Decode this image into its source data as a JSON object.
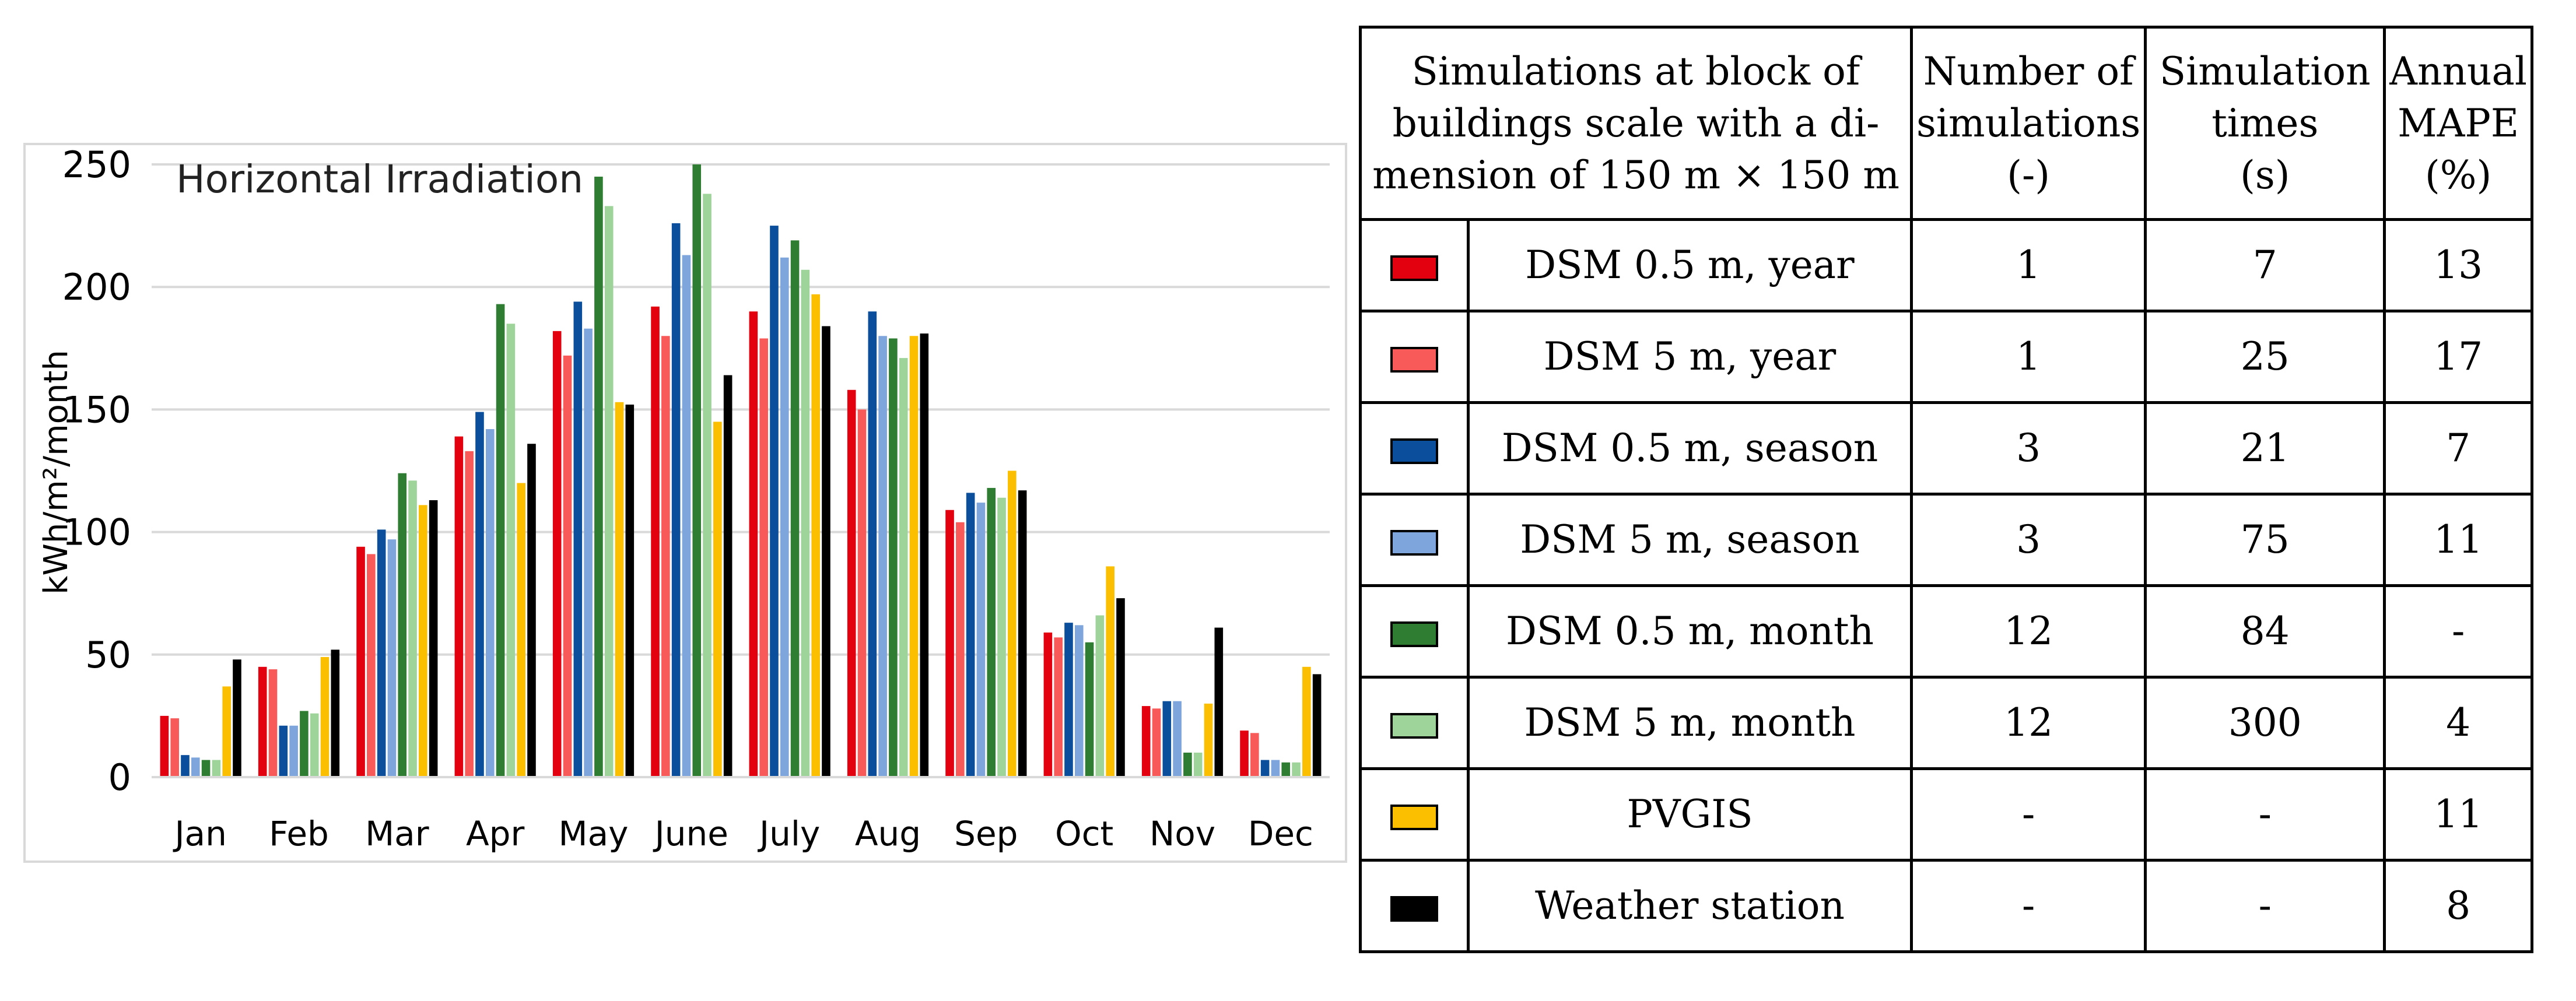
{
  "chart_data": {
    "type": "bar",
    "title": "Horizontal Irradiation",
    "xlabel": "",
    "ylabel": "kWh/m²/month",
    "ylim": [
      0,
      250
    ],
    "yticks": [
      0,
      50,
      100,
      150,
      200,
      250
    ],
    "grid": true,
    "categories": [
      "Jan",
      "Feb",
      "Mar",
      "Apr",
      "May",
      "June",
      "July",
      "Aug",
      "Sep",
      "Oct",
      "Nov",
      "Dec"
    ],
    "series": [
      {
        "name": "DSM 0.5 m, year",
        "color": "#e3000f",
        "values": [
          25,
          45,
          94,
          139,
          182,
          192,
          190,
          158,
          109,
          59,
          29,
          19
        ]
      },
      {
        "name": "DSM 5 m, year",
        "color": "#f85a5a",
        "values": [
          24,
          44,
          91,
          133,
          172,
          180,
          179,
          150,
          104,
          57,
          28,
          18
        ]
      },
      {
        "name": "DSM 0.5 m, season",
        "color": "#0b4f9c",
        "values": [
          9,
          21,
          101,
          149,
          194,
          226,
          225,
          190,
          116,
          63,
          31,
          7
        ]
      },
      {
        "name": "DSM 5 m, season",
        "color": "#7ea6dd",
        "values": [
          8,
          21,
          97,
          142,
          183,
          213,
          212,
          180,
          112,
          62,
          31,
          7
        ]
      },
      {
        "name": "DSM 0.5 m, month",
        "color": "#2e7d32",
        "values": [
          7,
          27,
          124,
          193,
          245,
          250,
          219,
          179,
          118,
          55,
          10,
          6
        ]
      },
      {
        "name": "DSM 5 m, month",
        "color": "#9ed49a",
        "values": [
          7,
          26,
          121,
          185,
          233,
          238,
          207,
          171,
          114,
          66,
          10,
          6
        ]
      },
      {
        "name": "PVGIS",
        "color": "#fbbf00",
        "values": [
          37,
          49,
          111,
          120,
          153,
          145,
          197,
          180,
          125,
          86,
          30,
          45
        ]
      },
      {
        "name": "Weather station",
        "color": "#000000",
        "values": [
          48,
          52,
          113,
          136,
          152,
          164,
          184,
          181,
          117,
          73,
          61,
          42
        ]
      }
    ]
  },
  "table": {
    "headers": {
      "name_lines": [
        "Simulations at block of",
        "buildings scale with a di-",
        "mension of 150 m × 150 m"
      ],
      "num_lines": [
        "Number of",
        "simulations",
        "(-)"
      ],
      "time_lines": [
        "Simulation",
        "times",
        "(s)"
      ],
      "mape_lines": [
        "Annual",
        "MAPE",
        "(%)"
      ]
    },
    "rows": [
      {
        "name": "DSM 0.5 m, year",
        "num": "1",
        "time": "7",
        "mape": "13",
        "color": "#e3000f"
      },
      {
        "name": "DSM 5 m, year",
        "num": "1",
        "time": "25",
        "mape": "17",
        "color": "#f85a5a"
      },
      {
        "name": "DSM 0.5 m, season",
        "num": "3",
        "time": "21",
        "mape": "7",
        "color": "#0b4f9c"
      },
      {
        "name": "DSM 5 m, season",
        "num": "3",
        "time": "75",
        "mape": "11",
        "color": "#7ea6dd"
      },
      {
        "name": "DSM 0.5 m, month",
        "num": "12",
        "time": "84",
        "mape": "-",
        "color": "#2e7d32"
      },
      {
        "name": "DSM 5 m, month",
        "num": "12",
        "time": "300",
        "mape": "4",
        "color": "#9ed49a"
      },
      {
        "name": "PVGIS",
        "num": "-",
        "time": "-",
        "mape": "11",
        "color": "#fbbf00"
      },
      {
        "name": "Weather station",
        "num": "-",
        "time": "-",
        "mape": "8",
        "color": "#000000"
      }
    ]
  }
}
